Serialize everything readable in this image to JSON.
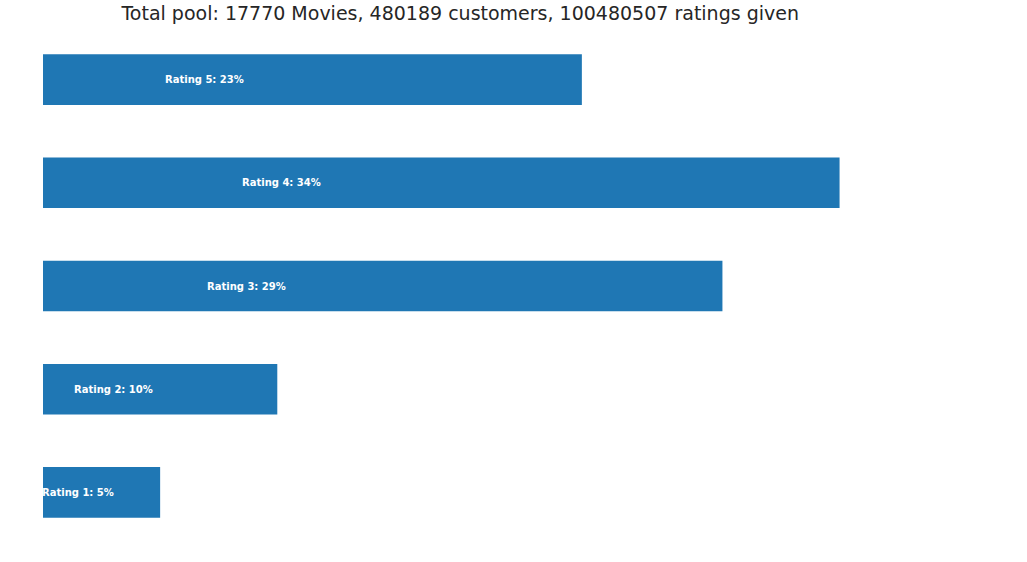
{
  "chart_data": {
    "type": "bar",
    "title": "Total pool: 17770 Movies, 480189 customers, 100480507 ratings given",
    "orientation": "horizontal",
    "values": [
      23,
      34,
      29,
      10,
      5
    ],
    "value_labels": [
      "Rating 5: 23%",
      "Rating 4: 34%",
      "Rating 3: 29%",
      "Rating 2: 10%",
      "Rating 1: 5%"
    ],
    "data_labels": true,
    "color": "#1f77b4",
    "xlim": [
      0,
      42
    ],
    "grid": false,
    "tick_labels": false
  }
}
